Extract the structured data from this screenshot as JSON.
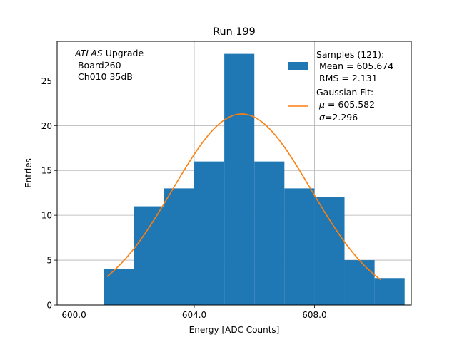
{
  "chart_data": {
    "type": "bar",
    "title": "Run 199",
    "xlabel": "Energy [ADC Counts]",
    "ylabel": "Entries",
    "xlim": [
      599.44,
      611.22
    ],
    "ylim": [
      0,
      29.4
    ],
    "grid": true,
    "x_ticks": [
      600.0,
      604.0,
      608.0
    ],
    "x_tick_labels": [
      "600.0",
      "604.0",
      "608.0"
    ],
    "y_ticks": [
      0,
      5,
      10,
      15,
      20,
      25
    ],
    "y_tick_labels": [
      "0",
      "5",
      "10",
      "15",
      "20",
      "25"
    ],
    "annotation": {
      "italic": "ATLAS",
      "line1_rest": " Upgrade",
      "line2": " Board260",
      "line3": " Ch010 35dB"
    },
    "histogram": {
      "name": "Samples (121):",
      "bin_edges": [
        601.0,
        602.0,
        603.0,
        604.0,
        605.0,
        606.0,
        607.0,
        608.0,
        609.0,
        610.0,
        611.0
      ],
      "counts": [
        4,
        11,
        13,
        16,
        28,
        16,
        13,
        12,
        5,
        3
      ],
      "color": "#1f77b4"
    },
    "fit": {
      "name": "Gaussian Fit:",
      "mu": 605.582,
      "sigma": 2.296,
      "amplitude": 21.3,
      "x_range": [
        601.1,
        610.2
      ],
      "color": "#ff7f0e"
    },
    "legend": {
      "placement": "top-right",
      "hist_lines": [
        "Samples (121):",
        " Mean = 605.674",
        " RMS = 2.131"
      ],
      "fit_line1": "Gaussian Fit:",
      "fit_mu_sym": "μ",
      "fit_mu_rest": " = 605.582",
      "fit_sigma_sym": "σ",
      "fit_sigma_rest": "=2.296"
    }
  }
}
